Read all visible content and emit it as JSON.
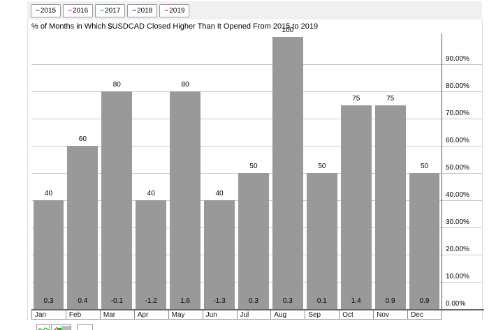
{
  "legend": {
    "dash_glyph": "−",
    "items": [
      {
        "label": "2015",
        "color": "#333333"
      },
      {
        "label": "2016",
        "color": "#ff00ff"
      },
      {
        "label": "2017",
        "color": "#00cc00"
      },
      {
        "label": "2018",
        "color": "#2222dd"
      },
      {
        "label": "2019",
        "color": "#ee0000"
      }
    ]
  },
  "title": "% of Months in Which $USDCAD Closed Higher Than It Opened From 2015 to 2019",
  "chart_data": {
    "type": "bar",
    "title": "% of Months in Which $USDCAD Closed Higher Than It Opened From 2015 to 2019",
    "categories": [
      "Jan",
      "Feb",
      "Mar",
      "Apr",
      "May",
      "Jun",
      "Jul",
      "Aug",
      "Sep",
      "Oct",
      "Nov",
      "Dec"
    ],
    "values": [
      40,
      60,
      80,
      40,
      80,
      40,
      50,
      100,
      50,
      75,
      75,
      50
    ],
    "bar_top_labels": [
      "40",
      "60",
      "80",
      "40",
      "80",
      "40",
      "50",
      "100",
      "50",
      "75",
      "75",
      "50"
    ],
    "in_bar_bottom_labels": [
      "0.3",
      "0.4",
      "-0.1",
      "-1.2",
      "1.6",
      "-1.3",
      "0.3",
      "0.3",
      "0.1",
      "1.4",
      "0.9",
      "0.9"
    ],
    "xlabel": "",
    "ylabel": "",
    "ylim": [
      0,
      100
    ],
    "y_ticks": [
      "0.00%",
      "10.00%",
      "20.00%",
      "30.00%",
      "40.00%",
      "50.00%",
      "60.00%",
      "70.00%",
      "80.00%",
      "90.00%"
    ],
    "grid": true,
    "yaxis_side": "right",
    "legend_position": "top-left",
    "bar_color": "#999999",
    "gridline_color": "#c9c9c9"
  },
  "toolbar": {
    "icons": [
      "area-chart-icon",
      "candlestick-chart-icon",
      "blank-button"
    ]
  }
}
